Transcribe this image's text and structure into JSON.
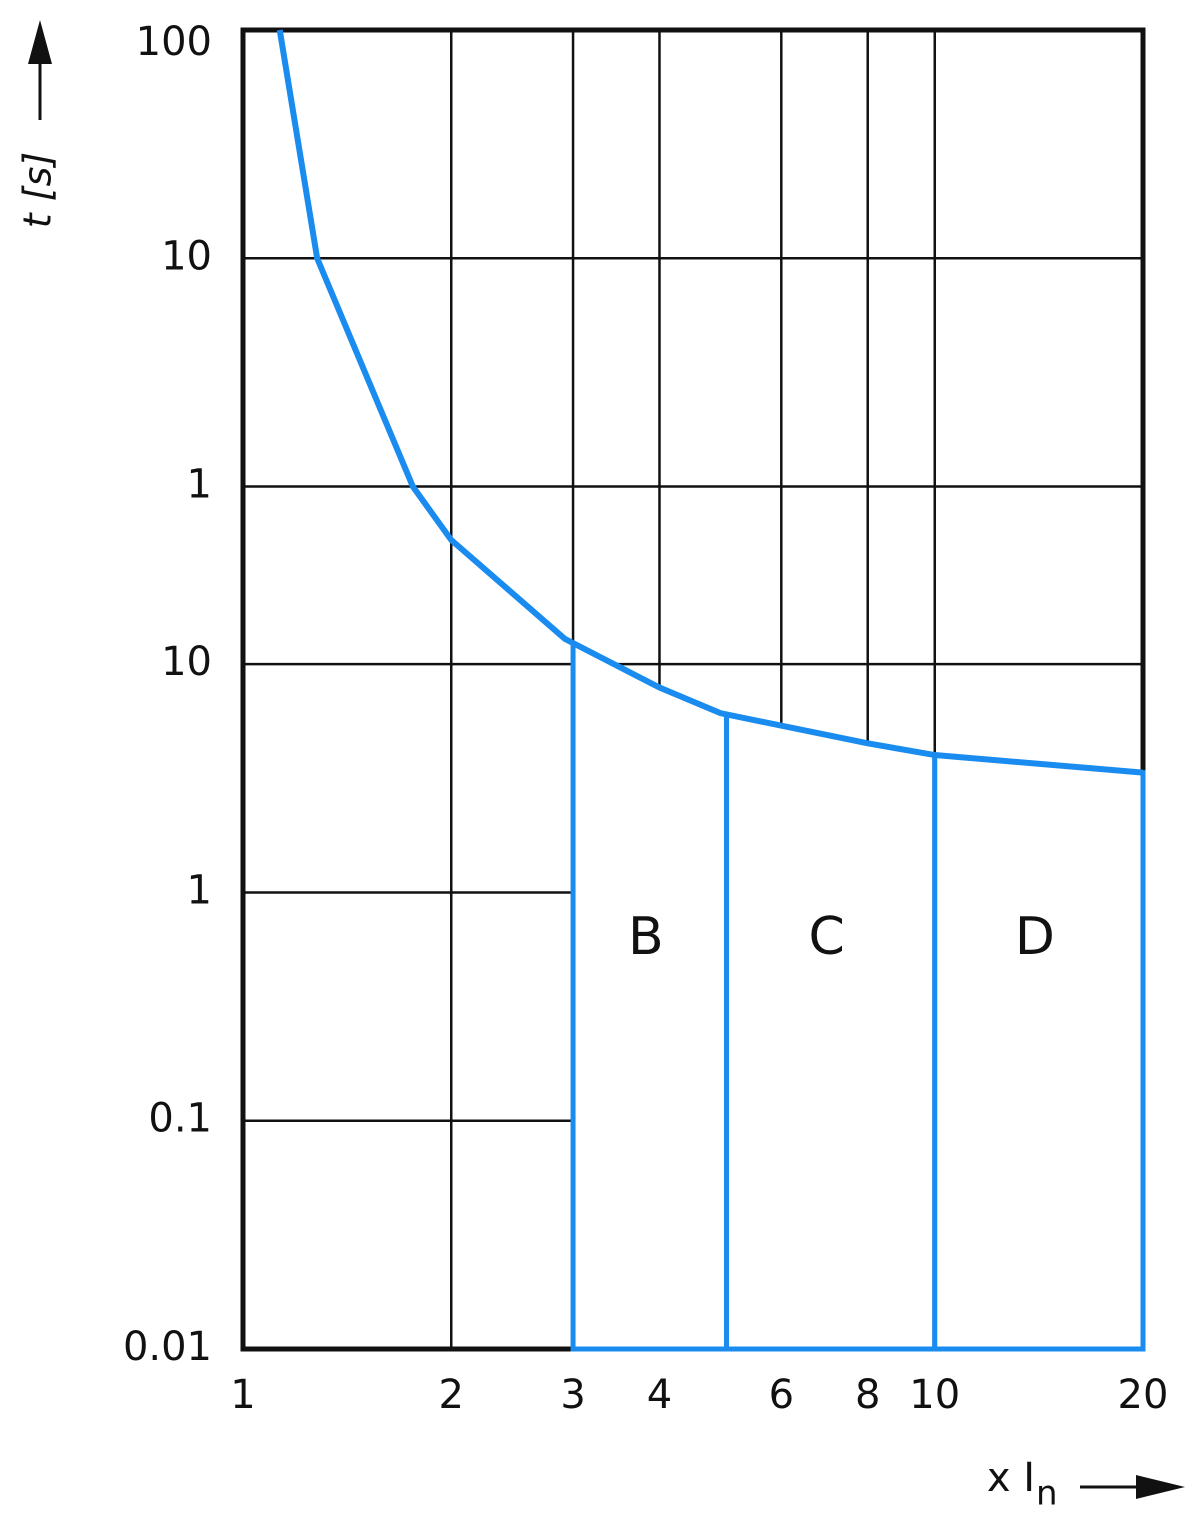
{
  "chart_data": {
    "type": "line",
    "y_label": "t [s]",
    "x_label": {
      "text": "x I",
      "subscript": "n"
    },
    "log_x": true,
    "log_y": true,
    "grid": true,
    "xlim": [
      1,
      20
    ],
    "xticks": [
      1,
      2,
      3,
      4,
      6,
      8,
      10,
      20
    ],
    "ylim": [
      0.01,
      6000
    ],
    "yticks": [
      {
        "value": 6000,
        "label": "100"
      },
      {
        "value": 600,
        "label": "10"
      },
      {
        "value": 60,
        "label": "1"
      },
      10,
      1,
      0.1,
      0.01
    ],
    "series": [
      {
        "color": "#1a8cf0",
        "x": [
          1.13,
          1.28,
          1.76,
          2,
          2.92,
          4,
          4.9,
          8,
          10,
          20
        ],
        "values": [
          6000,
          600,
          60,
          35,
          12.9,
          7.9,
          6.1,
          4.5,
          4.0,
          3.35
        ]
      }
    ],
    "zones": [
      {
        "label": "B",
        "range": [
          3,
          5
        ]
      },
      {
        "label": "C",
        "range": [
          5,
          10
        ]
      },
      {
        "label": "D",
        "range": [
          10,
          20
        ]
      }
    ]
  }
}
